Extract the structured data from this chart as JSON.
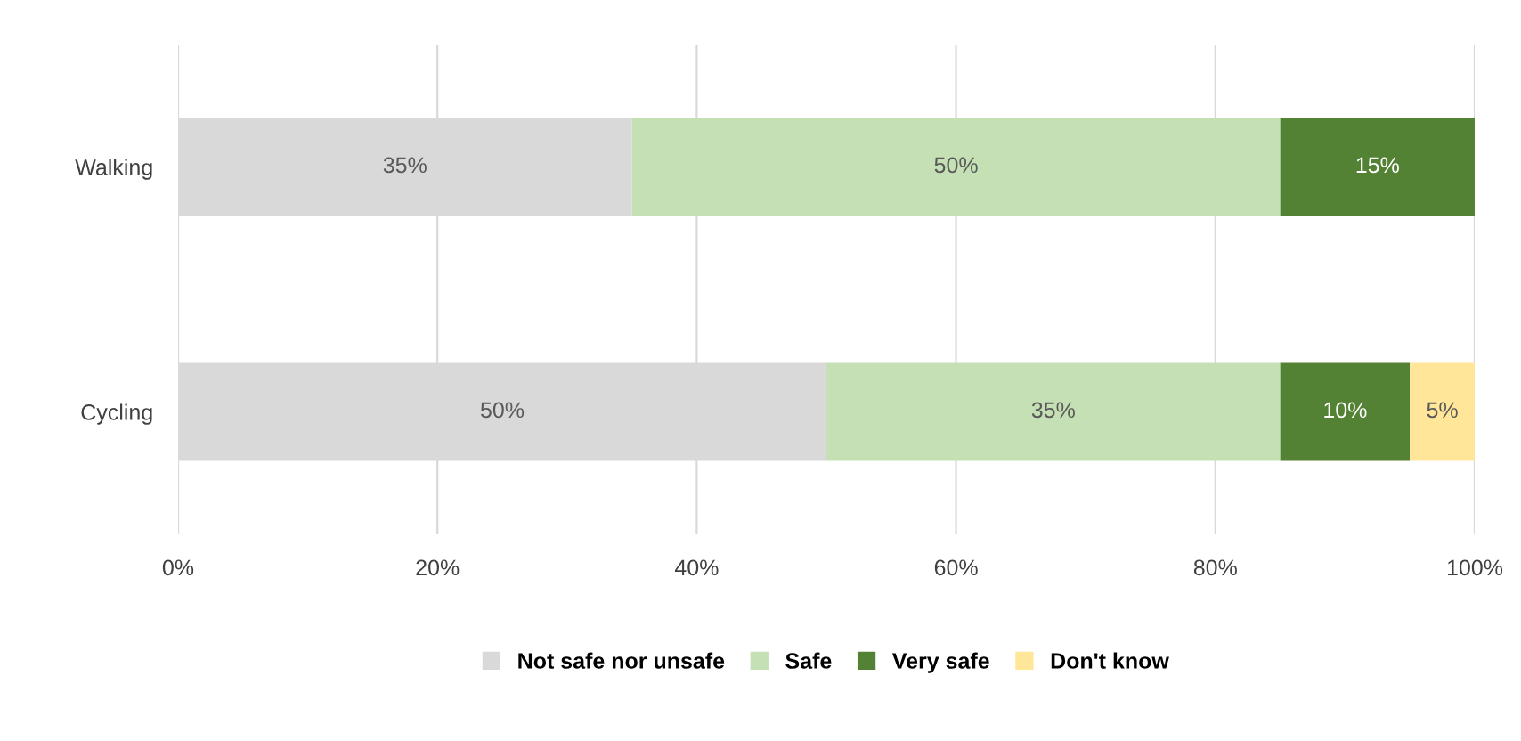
{
  "chart_data": {
    "type": "bar",
    "orientation": "horizontal",
    "stacked": true,
    "categories": [
      "Walking",
      "Cycling"
    ],
    "series": [
      {
        "name": "Not safe nor unsafe",
        "color": "#d9d9d9",
        "values": [
          35,
          50
        ],
        "value_labels": [
          "35%",
          "50%"
        ]
      },
      {
        "name": "Safe",
        "color": "#c5e0b4",
        "values": [
          50,
          35
        ],
        "value_labels": [
          "50%",
          "35%"
        ]
      },
      {
        "name": "Very safe",
        "color": "#548235",
        "values": [
          15,
          10
        ],
        "value_labels": [
          "15%",
          "10%"
        ]
      },
      {
        "name": "Don't know",
        "color": "#ffe699",
        "values": [
          0,
          5
        ],
        "value_labels": [
          null,
          "5%"
        ]
      }
    ],
    "xlim": [
      0,
      100
    ],
    "xticks": [
      {
        "value": 0,
        "label": "0%"
      },
      {
        "value": 20,
        "label": "20%"
      },
      {
        "value": 40,
        "label": "40%"
      },
      {
        "value": 60,
        "label": "60%"
      },
      {
        "value": 80,
        "label": "80%"
      },
      {
        "value": 100,
        "label": "100%"
      }
    ],
    "grid": "x",
    "legend": "bottom"
  }
}
